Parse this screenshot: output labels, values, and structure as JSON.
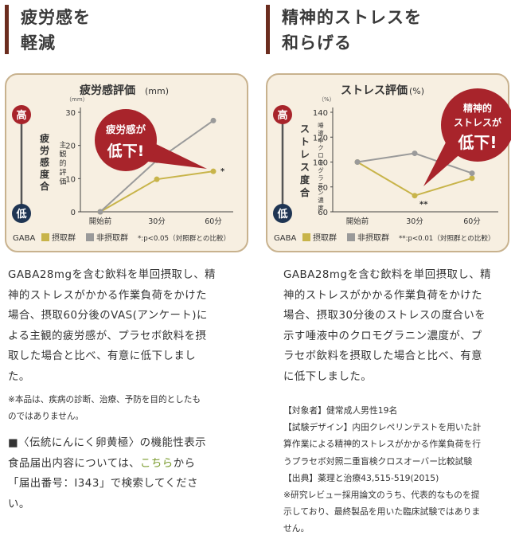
{
  "left": {
    "heading": [
      "疲労感を",
      "軽減"
    ],
    "chart_title": "疲労感評価",
    "chart_unit": "(mm)",
    "y_unit": "（mm）",
    "high": "高",
    "low": "低",
    "axis_side": "疲労感度合",
    "axis_desc": "主観的評価",
    "callout": [
      "疲労感が",
      "低下!"
    ],
    "legend": {
      "prefix": "GABA",
      "taken": "摂取群",
      "not_taken": "非摂取群",
      "sig": "*:p<0.05（対照群との比較）"
    },
    "sig_mark": "*",
    "paragraph": [
      "GABA28mgを含む飲料を単回摂取し、精",
      "神的ストレスがかかる作業負荷をかけた",
      "場合、摂取60分後のVAS(アンケート)に",
      "よる主観的疲労感が、プラセボ飲料を摂",
      "取した場合と比べ、有意に低下しまし",
      "た。"
    ],
    "note1": [
      "※本品は、疾病の診断、治療、予防を目的としたも",
      "のではありません。"
    ],
    "info_prefix": "■〈伝統にんにく卵黄極〉の機能性表示",
    "info_line2_pre": "食品届出内容については、",
    "info_link": "こちら",
    "info_line2_post": "から",
    "info_line3": "「届出番号：I343」で検索してくださ",
    "info_line4": "い。"
  },
  "right": {
    "heading": [
      "精神的ストレスを",
      "和らげる"
    ],
    "chart_title": "ストレス評価",
    "chart_unit": "(%)",
    "y_unit": "（%）",
    "high": "高",
    "low": "低",
    "axis_side": "ストレス度合",
    "axis_desc": "唾液中クロモグラニン濃度",
    "callout": [
      "精神的",
      "ストレスが",
      "低下!"
    ],
    "legend": {
      "prefix": "GABA",
      "taken": "摂取群",
      "not_taken": "非摂取群",
      "sig": "**:p<0.01（対照群との比較）"
    },
    "sig_mark": "**",
    "paragraph": [
      "GABA28mgを含む飲料を単回摂取し、精",
      "神的ストレスがかかる作業負荷をかけた",
      "場合、摂取30分後のストレスの度合いを",
      "示す唾液中のクロモグラニン濃度が、プ",
      "ラセボ飲料を摂取した場合と比べ、有意",
      "に低下しました。"
    ],
    "notes": [
      "【対象者】健常成人男性19名",
      "【試験デザイン】内田クレペリンテストを用いた計",
      "算作業による精神的ストレスがかかる作業負荷を行",
      "うプラセボ対照二重盲検クロスオーバー比較試験",
      "【出典】薬理と治療43,515-519(2015)",
      "※研究レビュー採用論文のうち、代表的なものを提",
      "示しており、最終製品を用いた臨床試験ではありま",
      "せん。"
    ]
  },
  "colors": {
    "taken": "#c8b44a",
    "not_taken": "#9a9a9a",
    "callout": "#a8242b",
    "high": "#a8242b",
    "low": "#1f3553"
  },
  "chart_data": [
    {
      "type": "line",
      "title": "疲労感評価(mm)",
      "categories": [
        "開始前",
        "30分",
        "60分"
      ],
      "ylim": [
        0,
        30
      ],
      "yticks": [
        0,
        10,
        20,
        30
      ],
      "series": [
        {
          "name": "摂取群",
          "values": [
            0,
            9.8,
            12.2
          ]
        },
        {
          "name": "非摂取群",
          "values": [
            0,
            15.5,
            27.5
          ]
        }
      ]
    },
    {
      "type": "line",
      "title": "ストレス評価(%)",
      "categories": [
        "開始前",
        "30分",
        "60分"
      ],
      "ylim": [
        60,
        140
      ],
      "yticks": [
        60,
        80,
        100,
        120,
        140
      ],
      "series": [
        {
          "name": "摂取群",
          "values": [
            100,
            73,
            87
          ]
        },
        {
          "name": "非摂取群",
          "values": [
            100,
            107,
            91
          ]
        }
      ]
    }
  ]
}
